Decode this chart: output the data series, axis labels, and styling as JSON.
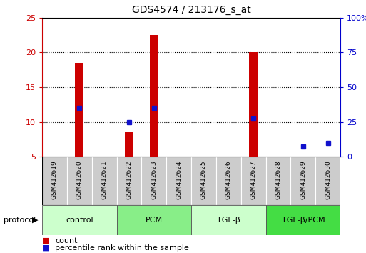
{
  "title": "GDS4574 / 213176_s_at",
  "samples": [
    "GSM412619",
    "GSM412620",
    "GSM412621",
    "GSM412622",
    "GSM412623",
    "GSM412624",
    "GSM412625",
    "GSM412626",
    "GSM412627",
    "GSM412628",
    "GSM412629",
    "GSM412630"
  ],
  "count_values": [
    5,
    18.5,
    5,
    8.5,
    22.5,
    5,
    5,
    5,
    20,
    5,
    5,
    5
  ],
  "percentile_values": [
    null,
    12,
    null,
    10,
    12,
    null,
    null,
    null,
    10.5,
    null,
    6.5,
    7
  ],
  "ylim_left": [
    5,
    25
  ],
  "ylim_right": [
    0,
    100
  ],
  "yticks_left": [
    5,
    10,
    15,
    20,
    25
  ],
  "yticks_right": [
    0,
    25,
    50,
    75,
    100
  ],
  "ytick_labels_left": [
    "5",
    "10",
    "15",
    "20",
    "25"
  ],
  "ytick_labels_right": [
    "0",
    "25",
    "50",
    "75",
    "100%"
  ],
  "bar_color": "#cc0000",
  "dot_color": "#1111cc",
  "grid_color": "#000000",
  "bg_color": "#ffffff",
  "sample_bg": "#cccccc",
  "groups": [
    {
      "label": "control",
      "start": 0,
      "end": 3,
      "color": "#ccffcc"
    },
    {
      "label": "PCM",
      "start": 3,
      "end": 6,
      "color": "#88ee88"
    },
    {
      "label": "TGF-β",
      "start": 6,
      "end": 9,
      "color": "#ccffcc"
    },
    {
      "label": "TGF-β/PCM",
      "start": 9,
      "end": 12,
      "color": "#44dd44"
    }
  ],
  "protocol_label": "protocol",
  "left_axis_color": "#cc0000",
  "right_axis_color": "#0000cc",
  "gridlines_at": [
    10,
    15,
    20
  ],
  "bar_width": 0.35
}
